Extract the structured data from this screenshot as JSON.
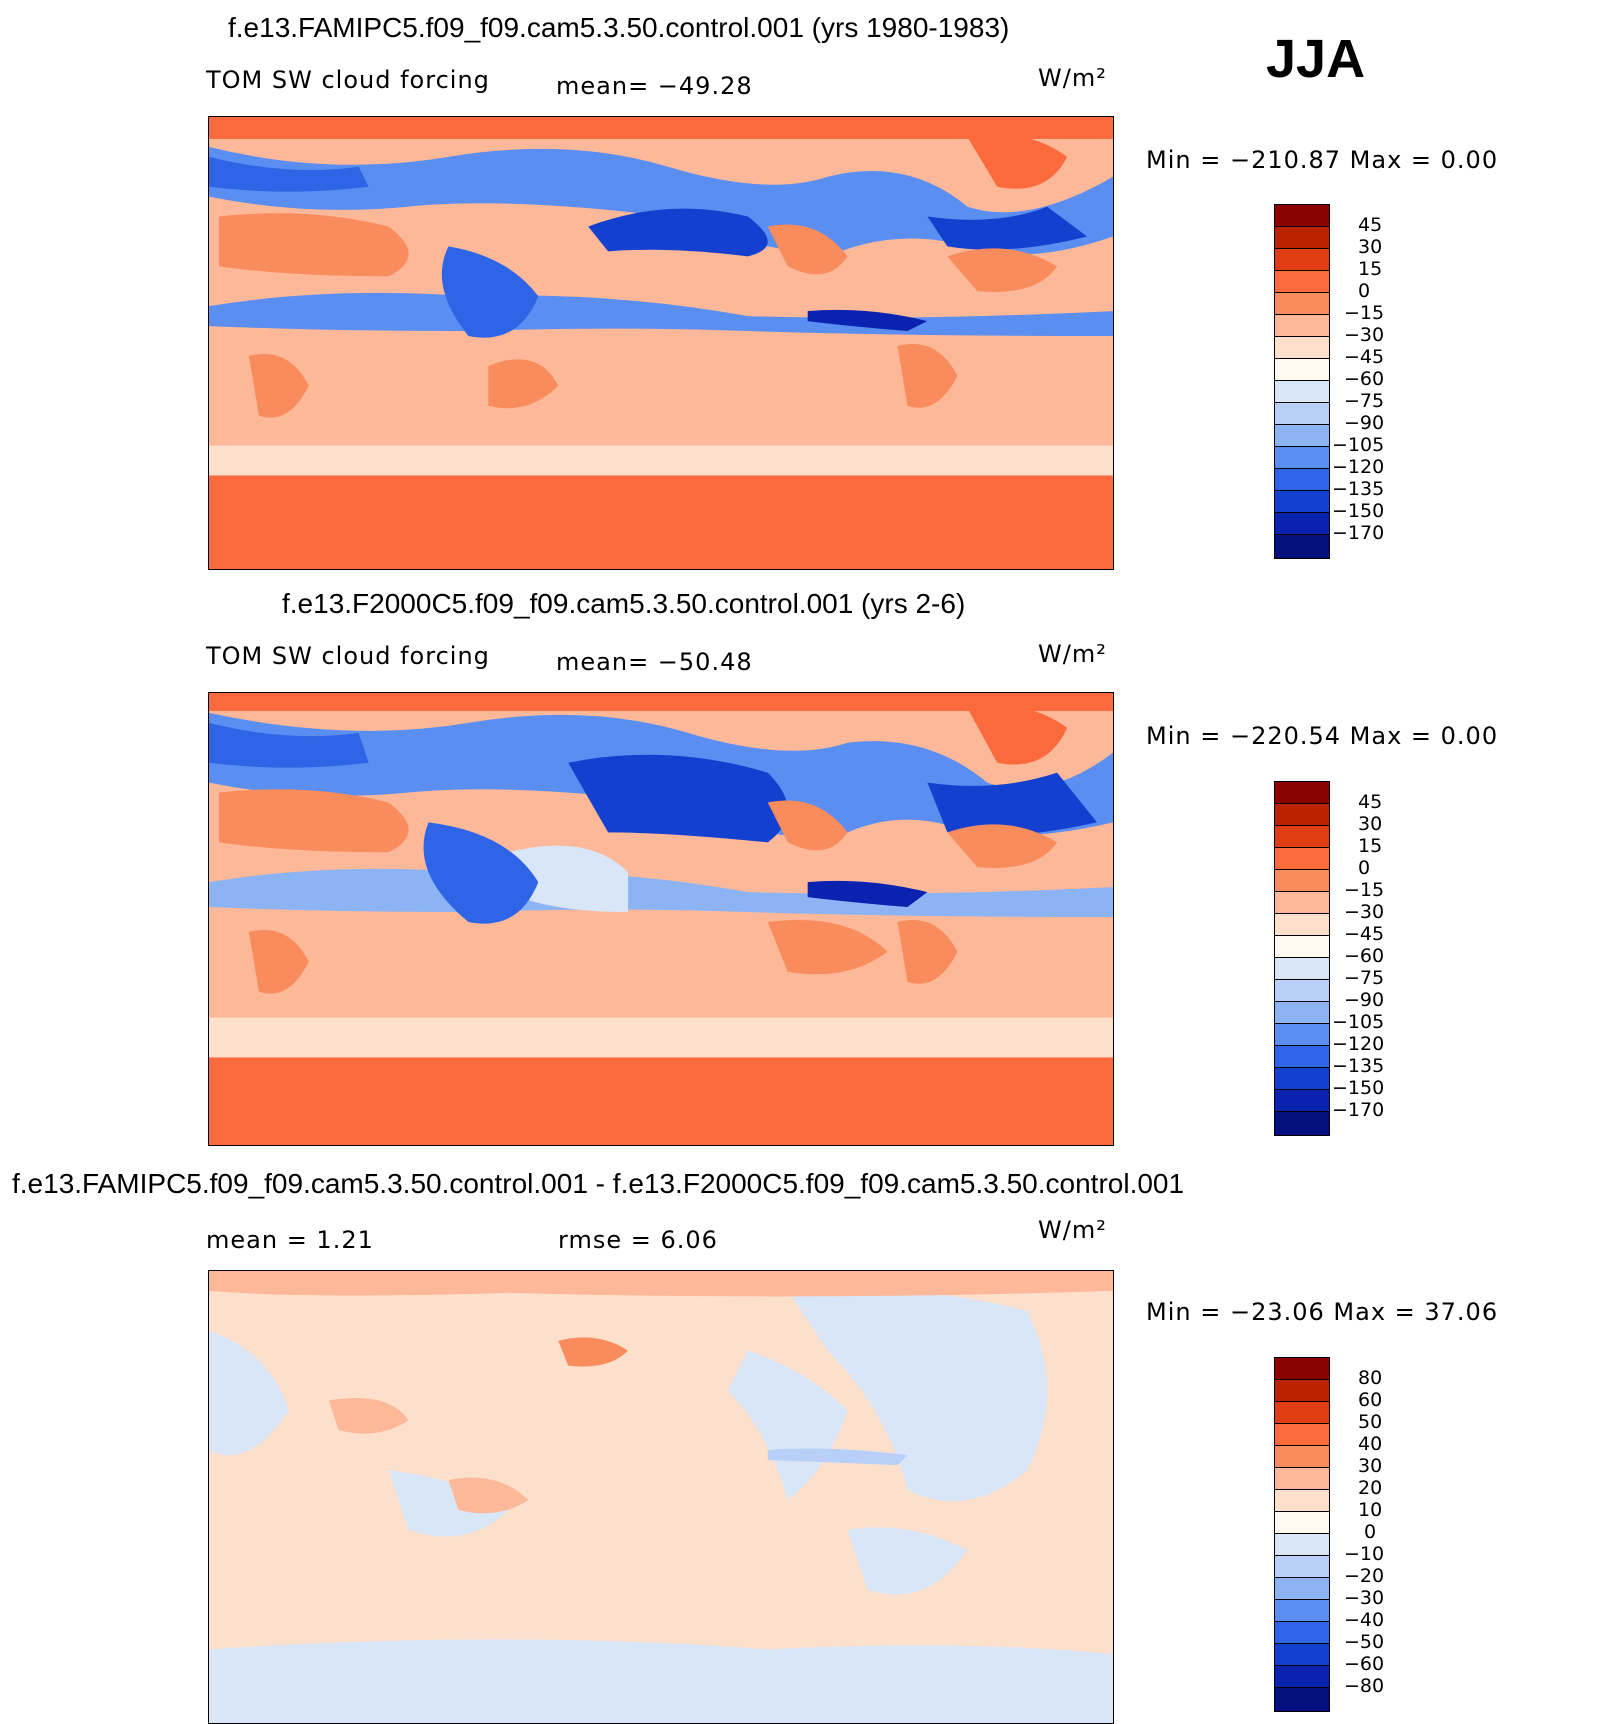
{
  "season": "JJA",
  "panels": [
    {
      "title": "f.e13.FAMIPC5.f09_f09.cam5.3.50.control.001 (yrs 1980-1983)",
      "variable": "TOM SW cloud forcing",
      "mean_label": "mean= −49.28",
      "units": "W/m²",
      "minmax": "Min = −210.87 Max =    0.00"
    },
    {
      "title": "f.e13.F2000C5.f09_f09.cam5.3.50.control.001 (yrs 2-6)",
      "variable": "TOM SW cloud forcing",
      "mean_label": "mean= −50.48",
      "units": "W/m²",
      "minmax": "Min = −220.54 Max =    0.00"
    },
    {
      "title": "f.e13.FAMIPC5.f09_f09.cam5.3.50.control.001 - f.e13.F2000C5.f09_f09.cam5.3.50.control.001",
      "mean_label": "mean =    1.21",
      "rmse_label": "rmse =    6.06",
      "units": "W/m²",
      "minmax": "Min = −23.06 Max =  37.06"
    }
  ],
  "chart_data": [
    {
      "type": "heatmap",
      "title": "f.e13.FAMIPC5.f09_f09.cam5.3.50.control.001 (yrs 1980-1983)",
      "variable": "TOM SW cloud forcing",
      "units": "W/m²",
      "season": "JJA",
      "mean": -49.28,
      "min": -210.87,
      "max": 0.0,
      "colorbar_levels": [
        "45",
        "30",
        "15",
        "0",
        "−15",
        "−30",
        "−45",
        "−60",
        "−75",
        "−90",
        "−105",
        "−120",
        "−135",
        "−150",
        "−170"
      ],
      "colorbar_colors": [
        "#8b0000",
        "#bb2200",
        "#e23c14",
        "#fb6a3c",
        "#f98c5c",
        "#fcb898",
        "#fde0cc",
        "#fffaf0",
        "#d8e6f8",
        "#b8d0f8",
        "#8cb4f4",
        "#5a8ef0",
        "#2e64e6",
        "#1440d0",
        "#0a22b0",
        "#04107e"
      ]
    },
    {
      "type": "heatmap",
      "title": "f.e13.F2000C5.f09_f09.cam5.3.50.control.001 (yrs 2-6)",
      "variable": "TOM SW cloud forcing",
      "units": "W/m²",
      "season": "JJA",
      "mean": -50.48,
      "min": -220.54,
      "max": 0.0,
      "colorbar_levels": [
        "45",
        "30",
        "15",
        "0",
        "−15",
        "−30",
        "−45",
        "−60",
        "−75",
        "−90",
        "−105",
        "−120",
        "−135",
        "−150",
        "−170"
      ],
      "colorbar_colors": [
        "#8b0000",
        "#bb2200",
        "#e23c14",
        "#fb6a3c",
        "#f98c5c",
        "#fcb898",
        "#fde0cc",
        "#fffaf0",
        "#d8e6f8",
        "#b8d0f8",
        "#8cb4f4",
        "#5a8ef0",
        "#2e64e6",
        "#1440d0",
        "#0a22b0",
        "#04107e"
      ]
    },
    {
      "type": "heatmap",
      "title": "f.e13.FAMIPC5.f09_f09.cam5.3.50.control.001 - f.e13.F2000C5.f09_f09.cam5.3.50.control.001",
      "units": "W/m²",
      "season": "JJA",
      "mean": 1.21,
      "rmse": 6.06,
      "min": -23.06,
      "max": 37.06,
      "colorbar_levels": [
        "80",
        "60",
        "50",
        "40",
        "30",
        "20",
        "10",
        "0",
        "−10",
        "−20",
        "−30",
        "−40",
        "−50",
        "−60",
        "−80"
      ],
      "colorbar_colors": [
        "#8b0000",
        "#bb2200",
        "#e23c14",
        "#fb6a3c",
        "#f98c5c",
        "#fcb898",
        "#fde0cc",
        "#fffaf0",
        "#d8e6f8",
        "#b8d0f8",
        "#8cb4f4",
        "#5a8ef0",
        "#2e64e6",
        "#1440d0",
        "#0a22b0",
        "#04107e"
      ]
    }
  ]
}
